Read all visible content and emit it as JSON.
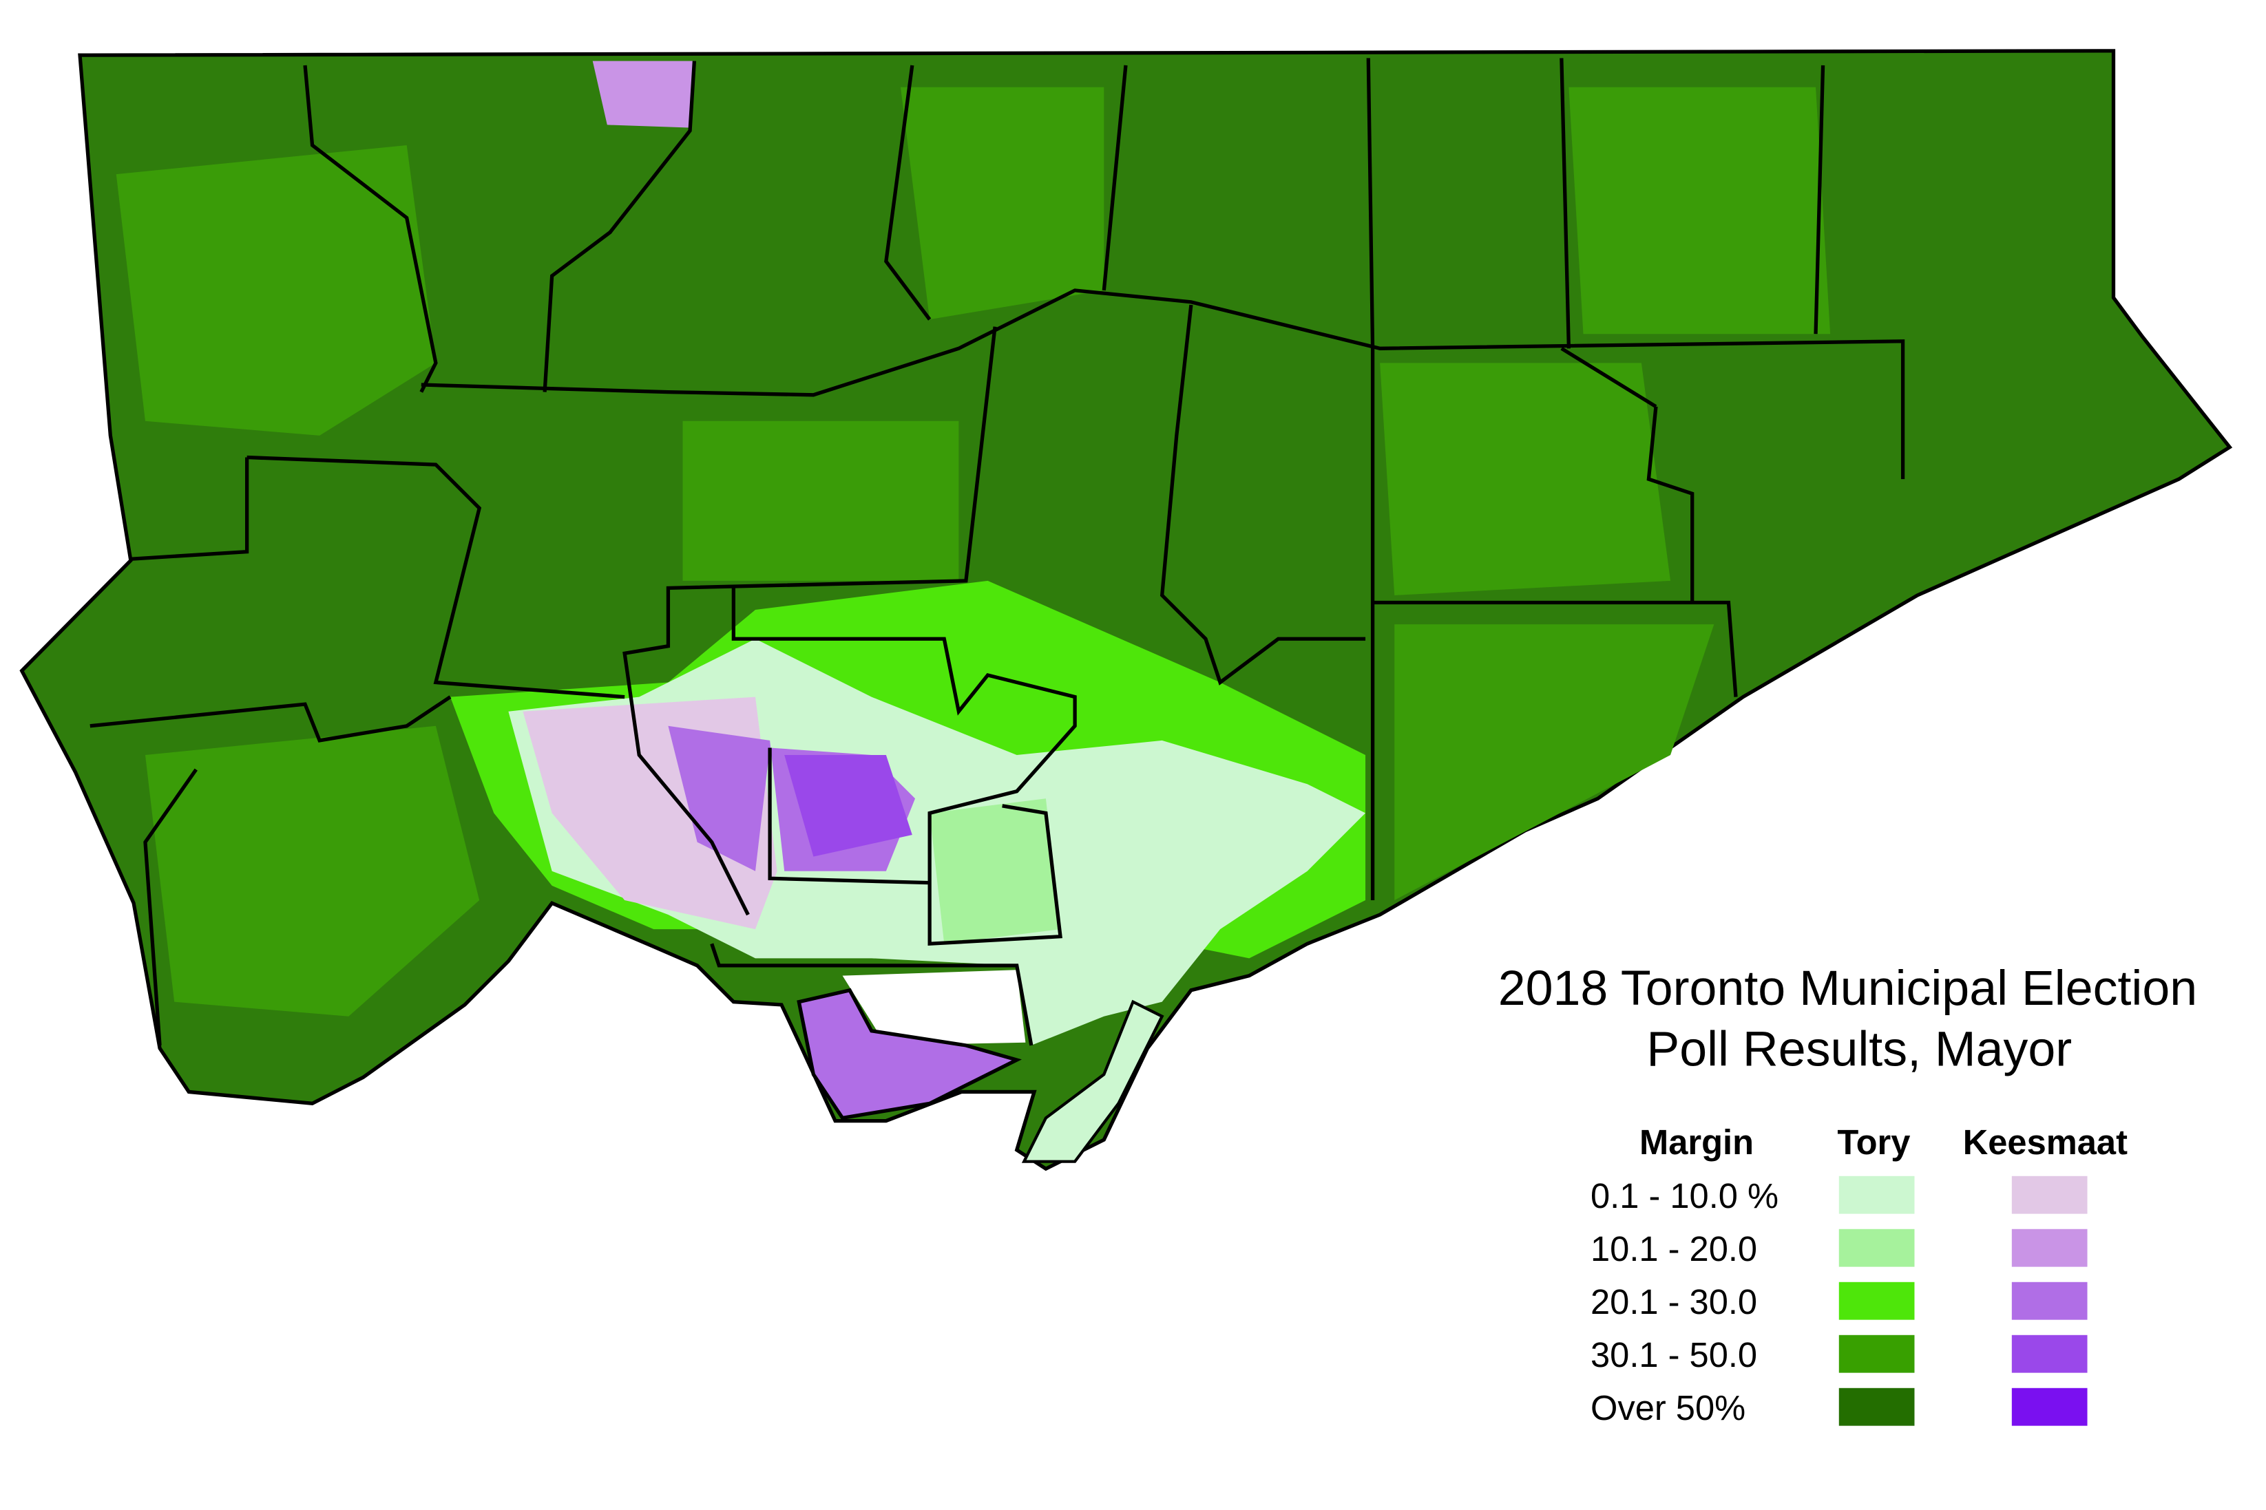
{
  "title": [
    "2018 Toronto Municipal Election",
    "Poll Results, Mayor"
  ],
  "legend": {
    "headers": [
      "Margin",
      "Tory",
      "Keesmaat"
    ],
    "rows": [
      {
        "label": "0.1 - 10.0 %",
        "tory_color": "#ccf7d0",
        "keesmaat_color": "#e2c8e6"
      },
      {
        "label": "10.1 - 20.0",
        "tory_color": "#a6f29c",
        "keesmaat_color": "#c994e6"
      },
      {
        "label": "20.1 - 30.0",
        "tory_color": "#4ee60a",
        "keesmaat_color": "#b06ee6"
      },
      {
        "label": "30.1 - 50.0",
        "tory_color": "#38a000",
        "keesmaat_color": "#9a48ea"
      },
      {
        "label": "Over 50%",
        "tory_color": "#236e00",
        "keesmaat_color": "#7a10f0"
      }
    ]
  }
}
